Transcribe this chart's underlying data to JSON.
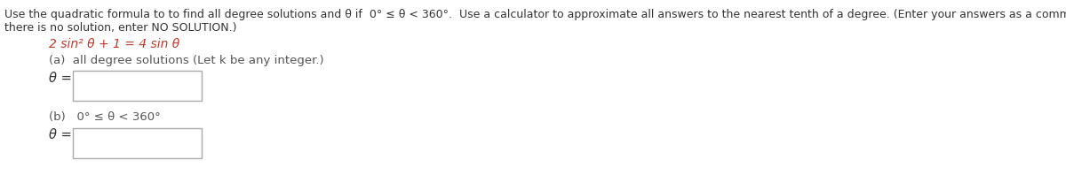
{
  "background_color": "#ffffff",
  "instruction_line1": "Use the quadratic formula to to find all degree solutions and θ if  0° ≤ θ < 360°.  Use a calculator to approximate all answers to the nearest tenth of a degree. (Enter your answers as a comma-separated list. If",
  "instruction_line2": "there is no solution, enter NO SOLUTION.)",
  "equation": "2 sin² θ + 1 = 4 sin θ",
  "part_a_label": "(a)  all degree solutions (Let k be any integer.)",
  "part_b_label": "(b)   0° ≤ θ < 360°",
  "theta_label": "θ =",
  "instruction_color": "#333333",
  "equation_color": "#c0392b",
  "part_label_color": "#555555",
  "theta_color": "#333333",
  "box_edge_color": "#aaaaaa",
  "font_size_instruction": 9.0,
  "font_size_equation": 10.0,
  "font_size_part": 9.5,
  "font_size_theta": 10.5
}
